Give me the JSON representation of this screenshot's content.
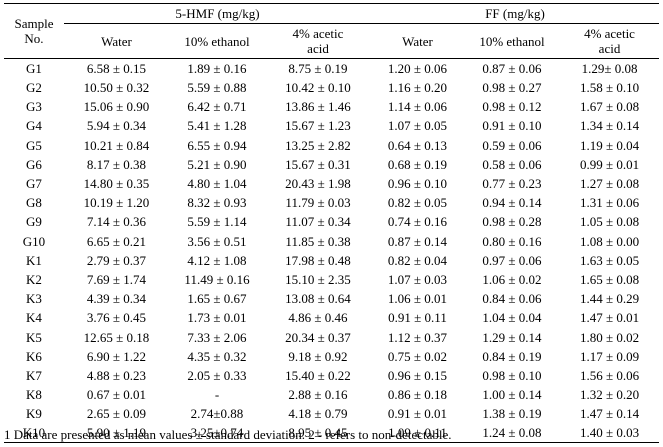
{
  "header": {
    "sample_label_line1": "Sample",
    "sample_label_line2": "No.",
    "group1": "5-HMF (mg/kg)",
    "group2": "FF (mg/kg)",
    "col_water": "Water",
    "col_ethanol": "10% ethanol",
    "col_acetic_line1": "4% acetic",
    "col_acetic_line2": "acid"
  },
  "rows": [
    [
      "G1",
      "6.58  ± 0.15",
      "1.89 ± 0.16",
      "8.75  ± 0.19",
      "1.20 ± 0.06",
      "0.87 ± 0.06",
      "1.29± 0.08"
    ],
    [
      "G2",
      "10.50 ± 0.32",
      "5.59 ± 0.88",
      "10.42 ± 0.10",
      "1.16 ± 0.20",
      "0.98 ± 0.27",
      "1.58 ± 0.10"
    ],
    [
      "G3",
      "15.06 ± 0.90",
      "6.42 ± 0.71",
      "13.86 ± 1.46",
      "1.14 ± 0.06",
      "0.98 ± 0.12",
      "1.67 ± 0.08"
    ],
    [
      "G4",
      "5.94 ± 0.34",
      "5.41 ± 1.28",
      "15.67 ± 1.23",
      "1.07 ± 0.05",
      "0.91 ± 0.10",
      "1.34 ± 0.14"
    ],
    [
      "G5",
      "10.21 ± 0.84",
      "6.55 ± 0.94",
      "13.25 ± 2.82",
      "0.64 ± 0.13",
      "0.59 ± 0.06",
      "1.19 ± 0.04"
    ],
    [
      "G6",
      "8.17 ± 0.38",
      "5.21 ± 0.90",
      "15.67 ± 0.31",
      "0.68 ± 0.19",
      "0.58 ± 0.06",
      "0.99 ± 0.01"
    ],
    [
      "G7",
      "14.80 ± 0.35",
      "4.80 ± 1.04",
      "20.43 ± 1.98",
      "0.96 ± 0.10",
      "0.77 ± 0.23",
      "1.27 ± 0.08"
    ],
    [
      "G8",
      "10.19 ± 1.20",
      "8.32 ± 0.93",
      "11.79 ± 0.03",
      "0.82 ± 0.05",
      "0.94 ± 0.14",
      "1.31 ± 0.06"
    ],
    [
      "G9",
      "7.14 ± 0.36",
      "5.59 ± 1.14",
      "11.07 ± 0.34",
      "0.74 ± 0.16",
      "0.98 ± 0.28",
      "1.05 ± 0.08"
    ],
    [
      "G10",
      "6.65 ± 0.21",
      "3.56 ± 0.51",
      "11.85 ± 0.38",
      "0.87 ± 0.14",
      "0.80 ± 0.16",
      "1.08 ± 0.00"
    ],
    [
      "K1",
      "2.79 ± 0.37",
      "4.12 ± 1.08",
      "17.98 ± 0.48",
      "0.82 ± 0.04",
      "0.97 ± 0.06",
      "1.63 ± 0.05"
    ],
    [
      "K2",
      "7.69 ± 1.74",
      "11.49 ± 0.16",
      "15.10 ± 2.35",
      "1.07 ± 0.03",
      "1.06 ± 0.02",
      "1.65 ± 0.08"
    ],
    [
      "K3",
      "4.39 ± 0.34",
      "1.65 ± 0.67",
      "13.08 ± 0.64",
      "1.06 ± 0.01",
      "0.84 ± 0.06",
      "1.44 ± 0.29"
    ],
    [
      "K4",
      "3.76 ± 0.45",
      "1.73 ± 0.01",
      "4.86 ± 0.46",
      "0.91 ± 0.11",
      "1.04 ± 0.04",
      "1.47 ± 0.01"
    ],
    [
      "K5",
      "12.65 ± 0.18",
      "7.33 ± 2.06",
      "20.34 ± 0.37",
      "1.12 ± 0.37",
      "1.29 ± 0.14",
      "1.80 ± 0.02"
    ],
    [
      "K6",
      "6.90 ± 1.22",
      "4.35 ± 0.32",
      "9.18 ± 0.92",
      "0.75 ± 0.02",
      "0.84 ± 0.19",
      "1.17 ± 0.09"
    ],
    [
      "K7",
      "4.88 ± 0.23",
      "2.05 ± 0.33",
      "15.40 ± 0.22",
      "0.96 ± 0.15",
      "0.98 ± 0.10",
      "1.56 ± 0.06"
    ],
    [
      "K8",
      "0.67 ± 0.01",
      "-",
      "2.88 ± 0.16",
      "0.86 ± 0.18",
      "1.00 ± 0.14",
      "1.32 ± 0.20"
    ],
    [
      "K9",
      "2.65 ± 0.09",
      "2.74±0.88",
      "4.18 ± 0.79",
      "0.91 ± 0.01",
      "1.38 ± 0.19",
      "1.47 ± 0.14"
    ],
    [
      "K10",
      "5.90 ± 1.19",
      "3.25±0.74",
      "8.95 ± 0.45",
      "1.09 ± 0.11",
      "1.24 ± 0.08",
      "1.40 ± 0.03"
    ]
  ],
  "footnote": "1 Data are presented as mean values ± standard deviation. 2 - refers to non-detectable."
}
